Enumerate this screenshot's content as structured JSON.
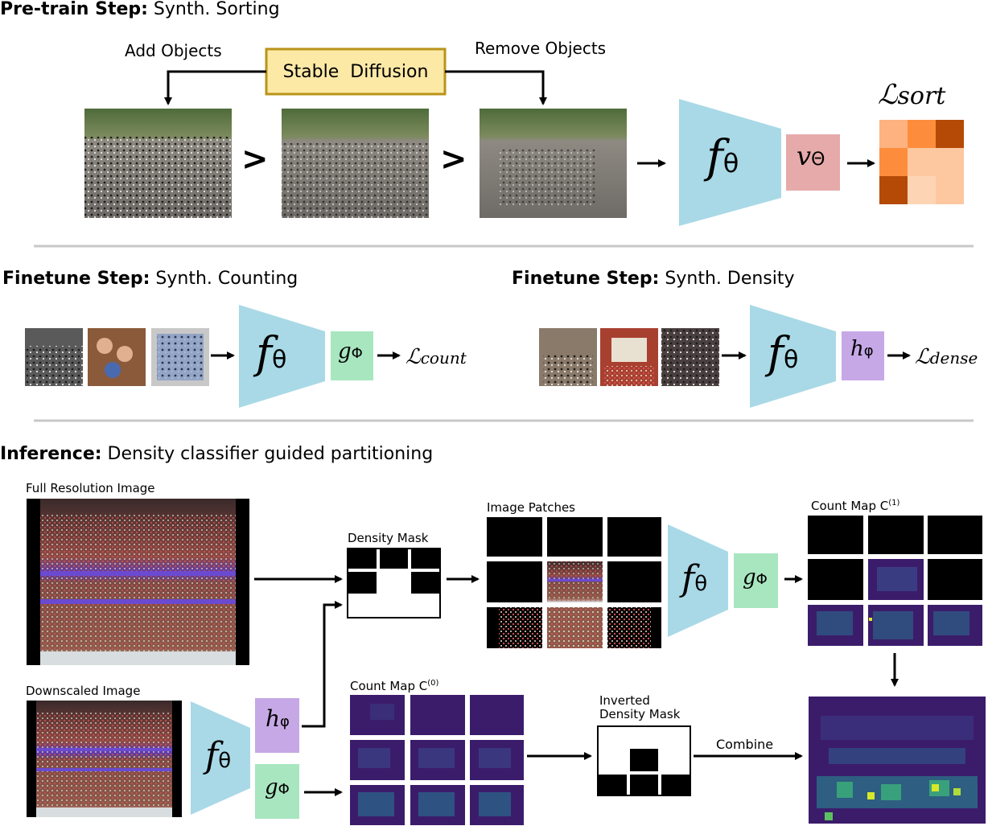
{
  "pretrain": {
    "heading_bold": "Pre-train Step:",
    "heading_rest": " Synth. Sorting",
    "add_label": "Add Objects",
    "remove_label": "Remove Objects",
    "sd_label": "Stable  Diffusion",
    "gt_symbol": ">",
    "f_symbol": "f",
    "f_sub": "θ",
    "v_symbol": "v",
    "v_sub": "Θ",
    "loss_main": "ℒ",
    "loss_sub": "sort"
  },
  "finetune_count": {
    "heading_bold": "Finetune Step:",
    "heading_rest": " Synth. Counting",
    "f_symbol": "f",
    "f_sub": "θ",
    "g_symbol": "g",
    "g_sub": "Φ",
    "loss_main": "ℒ",
    "loss_sub": "count"
  },
  "finetune_density": {
    "heading_bold": "Finetune Step:",
    "heading_rest": " Synth. Density",
    "f_symbol": "f",
    "f_sub": "θ",
    "h_symbol": "h",
    "h_sub": "φ",
    "loss_main": "ℒ",
    "loss_sub": "dense"
  },
  "inference": {
    "heading_bold": "Inference:",
    "heading_rest": " Density classifier guided partitioning",
    "full_res_label": "Full Resolution Image",
    "downscaled_label": "Downscaled Image",
    "density_mask_label": "Density Mask",
    "image_patches_label": "Image Patches",
    "count_map_1_label": "Count Map C",
    "count_map_1_sup": "(1)",
    "count_map_0_label": "Count Map C",
    "count_map_0_sup": "(0)",
    "inverted_mask_line1": "Inverted",
    "inverted_mask_line2": "Density Mask",
    "combine_label": "Combine",
    "f_symbol": "f",
    "f_sub": "θ",
    "g_symbol": "g",
    "g_sub": "Φ",
    "h_symbol": "h",
    "h_sub": "φ"
  },
  "colors": {
    "encoder": "#a9d9e6",
    "v_head": "#e6aaaa",
    "g_head": "#a8e6c0",
    "h_head": "#c6a8e6",
    "sd_fill": "#fde9a6",
    "sd_border": "#b8941a",
    "separator": "#c8c8c8"
  }
}
